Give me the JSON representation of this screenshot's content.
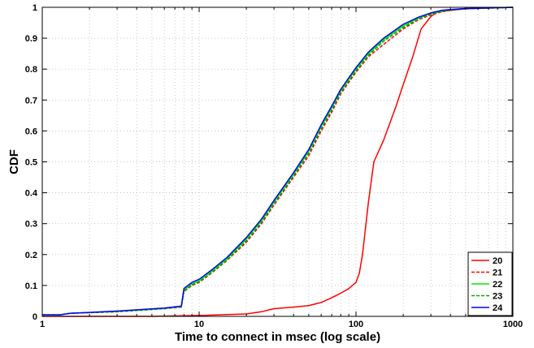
{
  "chart_data": {
    "type": "line",
    "title": "",
    "xlabel": "Time to connect in msec (log scale)",
    "ylabel": "CDF",
    "xscale": "log",
    "xlim": [
      1,
      1000
    ],
    "ylim": [
      0,
      1
    ],
    "xticks": [
      1,
      10,
      100,
      1000
    ],
    "xtick_labels": [
      "1",
      "10",
      "100",
      "1000"
    ],
    "yticks": [
      0,
      0.1,
      0.2,
      0.3,
      0.4,
      0.5,
      0.6,
      0.7,
      0.8,
      0.9,
      1
    ],
    "ytick_labels": [
      "0",
      "0.1",
      "0.2",
      "0.3",
      "0.4",
      "0.5",
      "0.6",
      "0.7",
      "0.8",
      "0.9",
      "1"
    ],
    "grid": true,
    "legend_position": "bottom-right",
    "series": [
      {
        "name": "20",
        "color": "#ff0000",
        "dash": "solid",
        "x": [
          1,
          2,
          5,
          10,
          20,
          25,
          30,
          40,
          50,
          60,
          70,
          80,
          90,
          100,
          105,
          110,
          120,
          130,
          150,
          180,
          200,
          230,
          260,
          300,
          330,
          400,
          500,
          1000
        ],
        "y": [
          0,
          0,
          0,
          0.003,
          0.008,
          0.015,
          0.025,
          0.03,
          0.035,
          0.045,
          0.06,
          0.075,
          0.09,
          0.11,
          0.14,
          0.2,
          0.37,
          0.5,
          0.57,
          0.68,
          0.75,
          0.84,
          0.93,
          0.97,
          0.985,
          0.99,
          0.995,
          1.0
        ]
      },
      {
        "name": "21",
        "color": "#ff0000",
        "dash": "dashed",
        "x": [
          1,
          1.3,
          1.5,
          3,
          6,
          7.7,
          8,
          9,
          10,
          12,
          15,
          20,
          25,
          30,
          40,
          50,
          60,
          70,
          80,
          100,
          120,
          150,
          200,
          250,
          300,
          350,
          400,
          500,
          1000
        ],
        "y": [
          0.005,
          0.005,
          0.01,
          0.015,
          0.025,
          0.03,
          0.08,
          0.1,
          0.11,
          0.14,
          0.18,
          0.24,
          0.3,
          0.36,
          0.45,
          0.52,
          0.6,
          0.66,
          0.72,
          0.79,
          0.84,
          0.88,
          0.93,
          0.96,
          0.975,
          0.985,
          0.99,
          0.995,
          1.0
        ]
      },
      {
        "name": "22",
        "color": "#00ee00",
        "dash": "solid",
        "x": [
          1,
          1.3,
          1.5,
          3,
          6,
          7.7,
          8,
          9,
          10,
          12,
          15,
          20,
          25,
          30,
          40,
          50,
          60,
          70,
          80,
          100,
          120,
          150,
          200,
          250,
          300,
          350,
          400,
          500,
          1000
        ],
        "y": [
          0.005,
          0.005,
          0.01,
          0.016,
          0.026,
          0.032,
          0.085,
          0.105,
          0.115,
          0.145,
          0.185,
          0.25,
          0.31,
          0.37,
          0.46,
          0.535,
          0.615,
          0.675,
          0.73,
          0.8,
          0.85,
          0.895,
          0.94,
          0.965,
          0.98,
          0.988,
          0.992,
          0.996,
          1.0
        ]
      },
      {
        "name": "23",
        "color": "#00aa00",
        "dash": "dashed",
        "x": [
          1,
          1.3,
          1.5,
          3,
          6,
          7.7,
          8,
          9,
          10,
          12,
          15,
          20,
          25,
          30,
          40,
          50,
          60,
          70,
          80,
          100,
          120,
          150,
          200,
          250,
          300,
          350,
          400,
          500,
          1000
        ],
        "y": [
          0.005,
          0.005,
          0.01,
          0.015,
          0.025,
          0.031,
          0.082,
          0.102,
          0.112,
          0.142,
          0.182,
          0.245,
          0.305,
          0.365,
          0.455,
          0.528,
          0.608,
          0.668,
          0.725,
          0.795,
          0.845,
          0.89,
          0.935,
          0.962,
          0.978,
          0.987,
          0.991,
          0.995,
          1.0
        ]
      },
      {
        "name": "24",
        "color": "#0000ff",
        "dash": "solid",
        "x": [
          1,
          1.3,
          1.5,
          3,
          6,
          7.7,
          8,
          9,
          10,
          12,
          15,
          20,
          25,
          30,
          40,
          50,
          60,
          70,
          80,
          100,
          120,
          150,
          200,
          250,
          300,
          350,
          400,
          500,
          1000
        ],
        "y": [
          0.005,
          0.005,
          0.01,
          0.017,
          0.027,
          0.033,
          0.09,
          0.11,
          0.12,
          0.15,
          0.19,
          0.255,
          0.315,
          0.375,
          0.465,
          0.54,
          0.62,
          0.68,
          0.735,
          0.805,
          0.855,
          0.9,
          0.945,
          0.968,
          0.982,
          0.99,
          0.993,
          0.996,
          1.0
        ]
      }
    ]
  }
}
